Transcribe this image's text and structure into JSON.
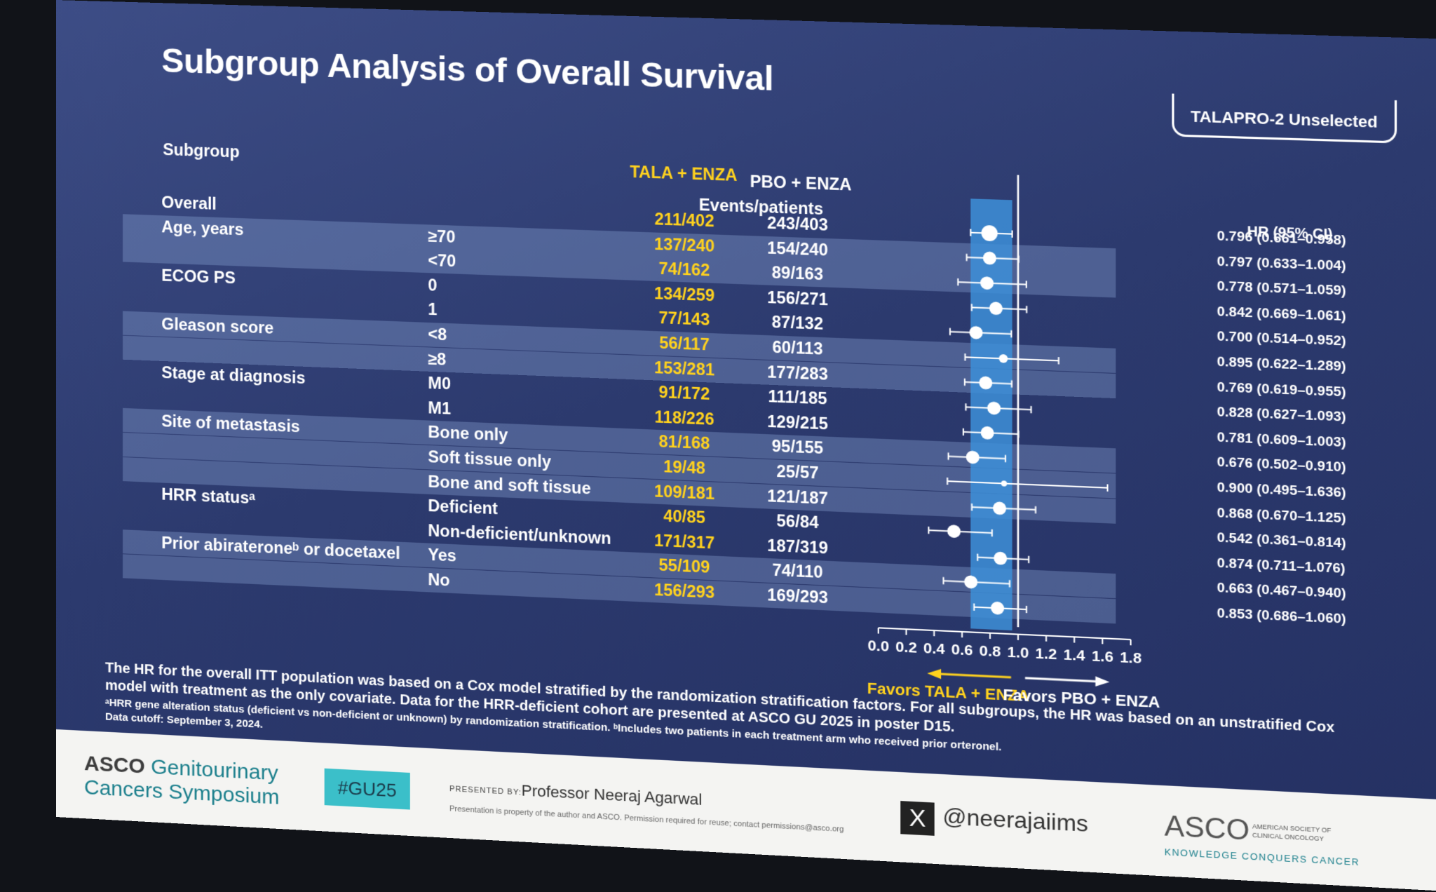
{
  "title": "Subgroup Analysis of Overall Survival",
  "badge": "TALAPRO-2 Unselected",
  "headers": {
    "subgroup": "Subgroup",
    "tala": "TALA + ENZA",
    "pbo": "PBO + ENZA",
    "events": "Events/patients",
    "hr": "HR (95% CI)"
  },
  "rows": [
    {
      "group": "Overall",
      "sub": "",
      "tala": "211/402",
      "pbo": "243/403",
      "hr_text": "0.796 (0.661–0.958)",
      "hr": 0.796,
      "lo": 0.661,
      "hi": 0.958,
      "shade": false
    },
    {
      "group": "Age, years",
      "sub": "≥70",
      "tala": "137/240",
      "pbo": "154/240",
      "hr_text": "0.797 (0.633–1.004)",
      "hr": 0.797,
      "lo": 0.633,
      "hi": 1.004,
      "shade": true
    },
    {
      "group": "",
      "sub": "<70",
      "tala": "74/162",
      "pbo": "89/163",
      "hr_text": "0.778 (0.571–1.059)",
      "hr": 0.778,
      "lo": 0.571,
      "hi": 1.059,
      "shade": true
    },
    {
      "group": "ECOG PS",
      "sub": "0",
      "tala": "134/259",
      "pbo": "156/271",
      "hr_text": "0.842 (0.669–1.061)",
      "hr": 0.842,
      "lo": 0.669,
      "hi": 1.061,
      "shade": false
    },
    {
      "group": "",
      "sub": "1",
      "tala": "77/143",
      "pbo": "87/132",
      "hr_text": "0.700 (0.514–0.952)",
      "hr": 0.7,
      "lo": 0.514,
      "hi": 0.952,
      "shade": false
    },
    {
      "group": "Gleason score",
      "sub": "<8",
      "tala": "56/117",
      "pbo": "60/113",
      "hr_text": "0.895 (0.622–1.289)",
      "hr": 0.895,
      "lo": 0.622,
      "hi": 1.289,
      "shade": true
    },
    {
      "group": "",
      "sub": "≥8",
      "tala": "153/281",
      "pbo": "177/283",
      "hr_text": "0.769 (0.619–0.955)",
      "hr": 0.769,
      "lo": 0.619,
      "hi": 0.955,
      "shade": true
    },
    {
      "group": "Stage at diagnosis",
      "sub": "M0",
      "tala": "91/172",
      "pbo": "111/185",
      "hr_text": "0.828 (0.627–1.093)",
      "hr": 0.828,
      "lo": 0.627,
      "hi": 1.093,
      "shade": false
    },
    {
      "group": "",
      "sub": "M1",
      "tala": "118/226",
      "pbo": "129/215",
      "hr_text": "0.781 (0.609–1.003)",
      "hr": 0.781,
      "lo": 0.609,
      "hi": 1.003,
      "shade": false
    },
    {
      "group": "Site of metastasis",
      "sub": "Bone only",
      "tala": "81/168",
      "pbo": "95/155",
      "hr_text": "0.676 (0.502–0.910)",
      "hr": 0.676,
      "lo": 0.502,
      "hi": 0.91,
      "shade": true
    },
    {
      "group": "",
      "sub": "Soft tissue only",
      "tala": "19/48",
      "pbo": "25/57",
      "hr_text": "0.900 (0.495–1.636)",
      "hr": 0.9,
      "lo": 0.495,
      "hi": 1.636,
      "shade": true
    },
    {
      "group": "",
      "sub": "Bone and soft tissue",
      "tala": "109/181",
      "pbo": "121/187",
      "hr_text": "0.868 (0.670–1.125)",
      "hr": 0.868,
      "lo": 0.67,
      "hi": 1.125,
      "shade": true
    },
    {
      "group": "HRR statusᵃ",
      "sub": "Deficient",
      "tala": "40/85",
      "pbo": "56/84",
      "hr_text": "0.542 (0.361–0.814)",
      "hr": 0.542,
      "lo": 0.361,
      "hi": 0.814,
      "shade": false
    },
    {
      "group": "",
      "sub": "Non-deficient/unknown",
      "tala": "171/317",
      "pbo": "187/319",
      "hr_text": "0.874 (0.711–1.076)",
      "hr": 0.874,
      "lo": 0.711,
      "hi": 1.076,
      "shade": false
    },
    {
      "group": "Prior abirateroneᵇ or docetaxel",
      "sub": "Yes",
      "tala": "55/109",
      "pbo": "74/110",
      "hr_text": "0.663 (0.467–0.940)",
      "hr": 0.663,
      "lo": 0.467,
      "hi": 0.94,
      "shade": true
    },
    {
      "group": "",
      "sub": "No",
      "tala": "156/293",
      "pbo": "169/293",
      "hr_text": "0.853 (0.686–1.060)",
      "hr": 0.853,
      "lo": 0.686,
      "hi": 1.06,
      "shade": true
    }
  ],
  "chart_data": {
    "type": "scatter",
    "xlabel": "",
    "xlim": [
      0,
      1.8
    ],
    "xticks": [
      "0.0",
      "0.2",
      "0.4",
      "0.6",
      "0.8",
      "1.0",
      "1.2",
      "1.4",
      "1.6",
      "1.8"
    ],
    "reference_line": 1.0,
    "favors_left": "Favors TALA + ENZA",
    "favors_right": "Favors PBO + ENZA"
  },
  "footnotes": {
    "line1": "The HR for the overall ITT population was based on a Cox model stratified by the randomization stratification factors. For all subgroups, the HR was based on an unstratified Cox",
    "line2": "model with treatment as the only covariate. Data for the HRR-deficient cohort are presented at ASCO GU 2025 in poster D15.",
    "line3": "ᵃHRR gene alteration status (deficient vs non-deficient or unknown) by randomization stratification. ᵇIncludes two patients in each treatment arm who received prior orteronel.",
    "line4": "Data cutoff: September 3, 2024."
  },
  "footer": {
    "asco_gu_1": "ASCO",
    "asco_gu_2": "Genitourinary",
    "asco_gu_3": "Cancers Symposium",
    "hashtag": "#GU25",
    "presented_by": "PRESENTED BY:",
    "presenter": "Professor Neeraj Agarwal",
    "property": "Presentation is property of the author and ASCO. Permission required for reuse; contact permissions@asco.org",
    "x_logo": "X",
    "handle": "@neerajaiims",
    "asco": "ASCO",
    "asco_sub1": "AMERICAN SOCIETY OF",
    "asco_sub2": "CLINICAL ONCOLOGY",
    "tagline": "KNOWLEDGE CONQUERS CANCER"
  },
  "colors": {
    "highlight": "#ffd21e",
    "band": "#3d8fd8",
    "footer_teal": "#3bbfc9",
    "asco_teal": "#1b7f8c"
  }
}
